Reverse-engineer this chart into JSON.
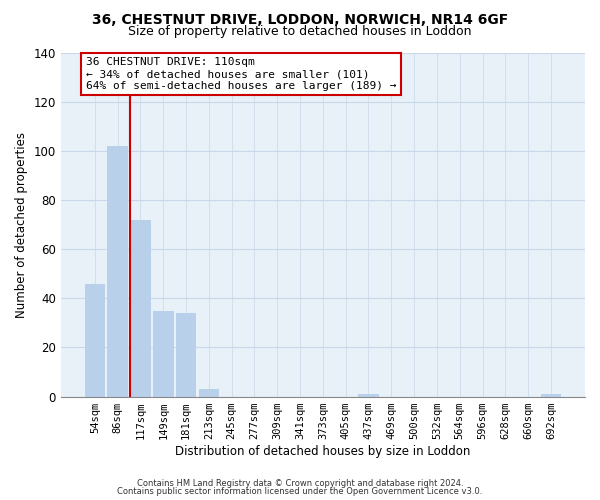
{
  "title_line1": "36, CHESTNUT DRIVE, LODDON, NORWICH, NR14 6GF",
  "title_line2": "Size of property relative to detached houses in Loddon",
  "xlabel": "Distribution of detached houses by size in Loddon",
  "ylabel": "Number of detached properties",
  "bar_labels": [
    "54sqm",
    "86sqm",
    "117sqm",
    "149sqm",
    "181sqm",
    "213sqm",
    "245sqm",
    "277sqm",
    "309sqm",
    "341sqm",
    "373sqm",
    "405sqm",
    "437sqm",
    "469sqm",
    "500sqm",
    "532sqm",
    "564sqm",
    "596sqm",
    "628sqm",
    "660sqm",
    "692sqm"
  ],
  "bar_values": [
    46,
    102,
    72,
    35,
    34,
    3,
    0,
    0,
    0,
    0,
    0,
    0,
    1,
    0,
    0,
    0,
    0,
    0,
    0,
    0,
    1
  ],
  "bar_color": "#b8d0ea",
  "ylim": [
    0,
    140
  ],
  "yticks": [
    0,
    20,
    40,
    60,
    80,
    100,
    120,
    140
  ],
  "annotation_title": "36 CHESTNUT DRIVE: 110sqm",
  "annotation_line1": "← 34% of detached houses are smaller (101)",
  "annotation_line2": "64% of semi-detached houses are larger (189) →",
  "footer_line1": "Contains HM Land Registry data © Crown copyright and database right 2024.",
  "footer_line2": "Contains public sector information licensed under the Open Government Licence v3.0.",
  "red_line_color": "#cc0000",
  "grid_color": "#c8d8e8",
  "background_color": "#ffffff",
  "plot_bg_color": "#e8f0f8"
}
